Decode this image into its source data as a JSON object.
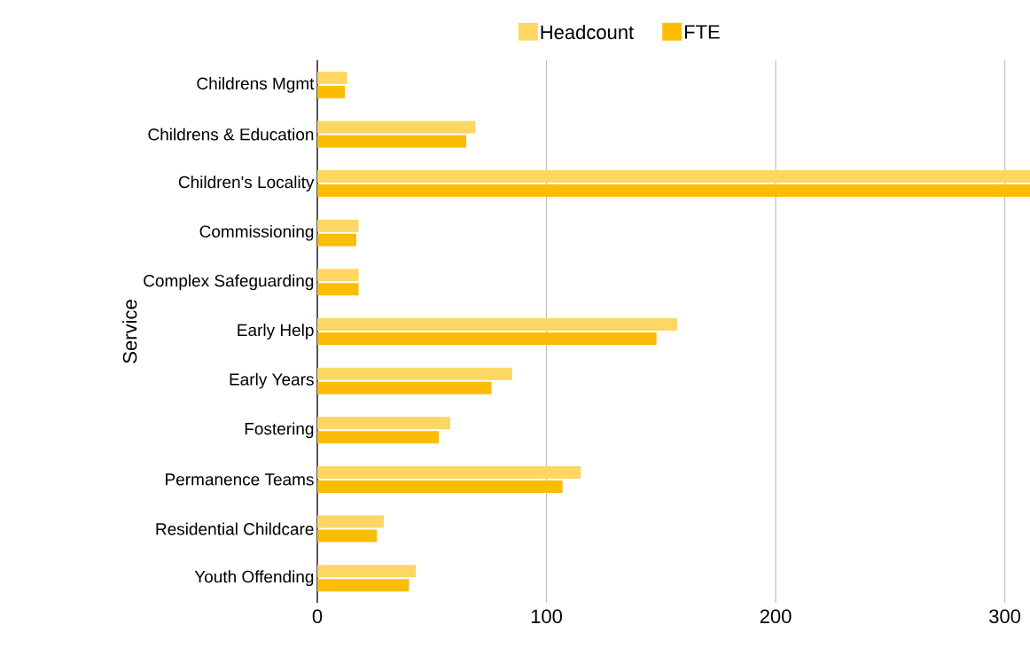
{
  "chart_data": {
    "type": "bar",
    "orientation": "horizontal",
    "ylabel": "Service",
    "categories": [
      "Childrens Mgmt",
      "Childrens & Education",
      "Children's Locality",
      "Commissioning",
      "Complex Safeguarding",
      "Early Help",
      "Early Years",
      "Fostering",
      "Permanence Teams",
      "Residential Childcare",
      "Youth Offending"
    ],
    "series": [
      {
        "name": "Headcount",
        "color": "#fdd663",
        "values": [
          13,
          69,
          311,
          18,
          18,
          157,
          85,
          58,
          115,
          29,
          43
        ]
      },
      {
        "name": "FTE",
        "color": "#fbbc04",
        "values": [
          12,
          65,
          311,
          17,
          18,
          148,
          76,
          53,
          107,
          26,
          40
        ]
      }
    ],
    "xlim": [
      0,
      311
    ],
    "xticks": [
      0,
      100,
      200,
      300
    ],
    "grid": "x",
    "legend": "top"
  }
}
